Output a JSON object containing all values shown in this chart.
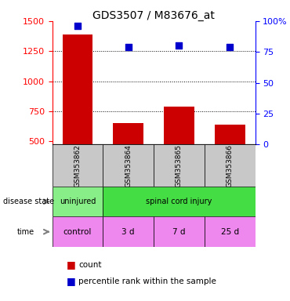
{
  "title": "GDS3507 / M83676_at",
  "samples": [
    "GSM353862",
    "GSM353864",
    "GSM353865",
    "GSM353866"
  ],
  "bar_values": [
    1390,
    650,
    790,
    640
  ],
  "bar_bottom": 475,
  "percentile_values": [
    96,
    79,
    80,
    79
  ],
  "left_ylim": [
    475,
    1500
  ],
  "left_yticks": [
    500,
    750,
    1000,
    1250,
    1500
  ],
  "right_ylim": [
    0,
    100
  ],
  "right_yticks": [
    0,
    25,
    50,
    75,
    100
  ],
  "bar_color": "#cc0000",
  "dot_color": "#0000cc",
  "disease_state_labels": [
    "uninjured",
    "spinal cord injury"
  ],
  "disease_state_colors": [
    "#66dd66",
    "#44cc44"
  ],
  "time_labels": [
    "control",
    "3 d",
    "7 d",
    "25 d"
  ],
  "time_color": "#ee88ee",
  "gray_bg": "#c8c8c8",
  "legend_count_color": "#cc0000",
  "legend_pct_color": "#0000cc"
}
